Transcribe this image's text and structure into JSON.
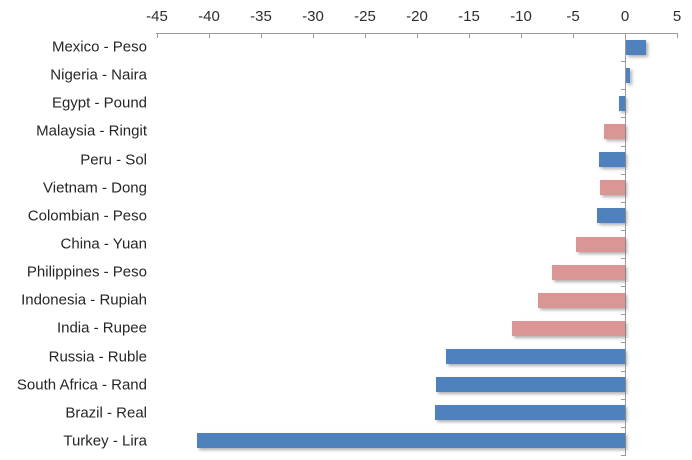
{
  "chart_data": {
    "type": "bar",
    "orientation": "horizontal",
    "title": "",
    "xlabel": "",
    "ylabel": "",
    "xlim": [
      -45,
      5
    ],
    "x_ticks": [
      -45,
      -40,
      -35,
      -30,
      -25,
      -20,
      -15,
      -10,
      -5,
      0,
      5
    ],
    "grid": false,
    "legend": "none",
    "axis_position": "top",
    "colors": {
      "blue": "#4F81BD",
      "pink": "#D99694"
    },
    "categories": [
      "Mexico - Peso",
      "Nigeria - Naira",
      "Egypt - Pound",
      "Malaysia - Ringit",
      "Peru - Sol",
      "Vietnam - Dong",
      "Colombian - Peso",
      "China - Yuan",
      "Philippines - Peso",
      "Indonesia - Rupiah",
      "India - Rupee",
      "Russia - Ruble",
      "South Africa - Rand",
      "Brazil - Real",
      "Turkey - Lira"
    ],
    "values": [
      1.9,
      0.4,
      -0.6,
      -2.0,
      -2.5,
      -2.4,
      -2.7,
      -4.7,
      -7.0,
      -8.4,
      -10.9,
      -17.2,
      -18.2,
      -18.3,
      -41.2
    ],
    "bar_color_keys": [
      "blue",
      "blue",
      "blue",
      "pink",
      "blue",
      "pink",
      "blue",
      "pink",
      "pink",
      "pink",
      "pink",
      "blue",
      "blue",
      "blue",
      "blue"
    ]
  }
}
